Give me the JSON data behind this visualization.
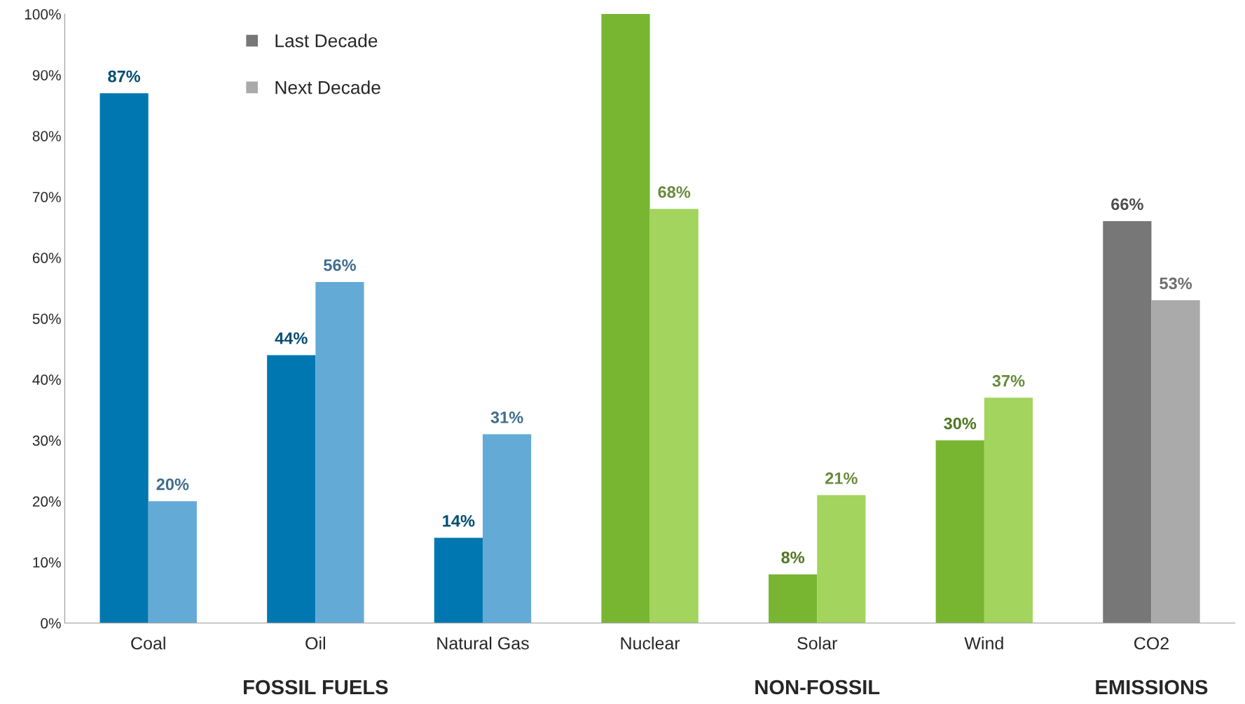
{
  "chart_data": {
    "type": "bar",
    "categories": [
      "Coal",
      "Oil",
      "Natural Gas",
      "Nuclear",
      "Solar",
      "Wind",
      "CO2"
    ],
    "series": [
      {
        "name": "Last Decade",
        "color": "#777777",
        "colors": [
          "#0077b0",
          "#0077b0",
          "#0077b0",
          "#78b631",
          "#78b631",
          "#78b631",
          "#777777"
        ],
        "values": [
          87,
          44,
          14,
          100,
          8,
          30,
          66
        ],
        "value_labels": [
          "87%",
          "44%",
          "14%",
          null,
          "8%",
          "30%",
          "66%"
        ]
      },
      {
        "name": "Next Decade",
        "color": "#aaaaaa",
        "colors": [
          "#63aad7",
          "#63aad7",
          "#63aad7",
          "#a2d45e",
          "#a2d45e",
          "#a2d45e",
          "#aaaaaa"
        ],
        "values": [
          20,
          56,
          31,
          68,
          21,
          37,
          53
        ],
        "value_labels": [
          "20%",
          "56%",
          "31%",
          "68%",
          "21%",
          "37%",
          "53%"
        ]
      }
    ],
    "ylim": [
      0,
      100
    ],
    "yticks": [
      {
        "value": 0,
        "label": "0%"
      },
      {
        "value": 10,
        "label": "10%"
      },
      {
        "value": 20,
        "label": "20%"
      },
      {
        "value": 30,
        "label": "30%"
      },
      {
        "value": 40,
        "label": "40%"
      },
      {
        "value": 50,
        "label": "50%"
      },
      {
        "value": 60,
        "label": "60%"
      },
      {
        "value": 70,
        "label": "70%"
      },
      {
        "value": 80,
        "label": "80%"
      },
      {
        "value": 90,
        "label": "90%"
      },
      {
        "value": 100,
        "label": "100%"
      }
    ],
    "annotations": [
      "FOSSIL FUELS",
      "NON-FOSSIL",
      "EMISSIONS"
    ],
    "grid": false,
    "legend": "top left"
  }
}
